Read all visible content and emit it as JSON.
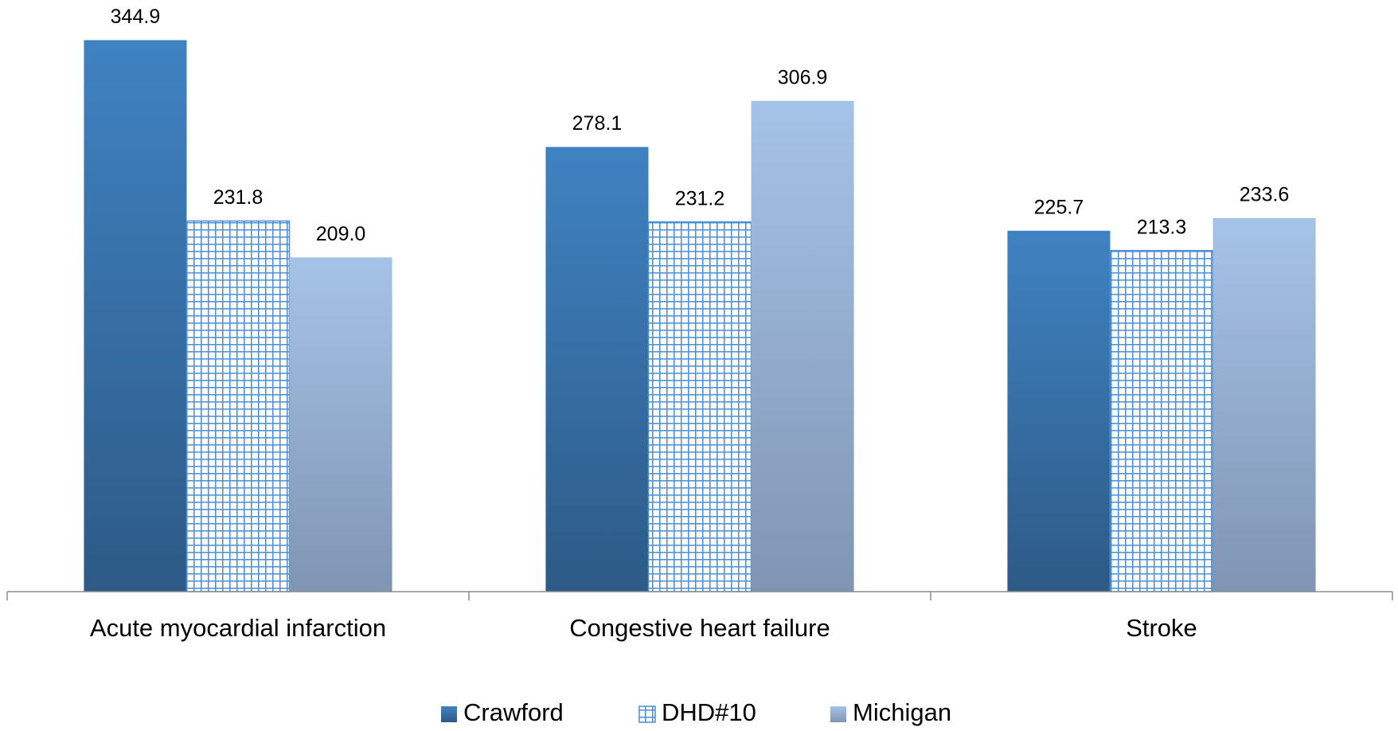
{
  "chart_data": {
    "type": "bar",
    "categories": [
      "Acute myocardial infarction",
      "Congestive heart failure",
      "Stroke"
    ],
    "series": [
      {
        "name": "Crawford",
        "color": "#3b7bb8",
        "values": [
          344.9,
          278.1,
          225.7
        ],
        "value_labels": [
          "344.9",
          "278.1",
          "225.7"
        ]
      },
      {
        "name": "DHD#10",
        "color": "#4a8fd6",
        "values": [
          231.8,
          231.2,
          213.3
        ],
        "value_labels": [
          "231.8",
          "231.2",
          "213.3"
        ]
      },
      {
        "name": "Michigan",
        "color": "#a3c1e6",
        "values": [
          209.0,
          306.9,
          233.6
        ],
        "value_labels": [
          "209.0",
          "306.9",
          "233.6"
        ]
      }
    ],
    "ylim": [
      0,
      370
    ],
    "legend": "bottom"
  }
}
